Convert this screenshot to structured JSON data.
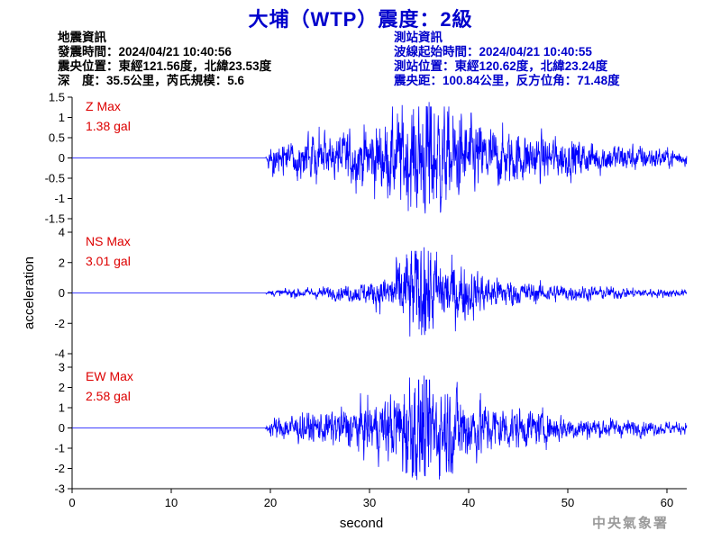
{
  "title": "大埔（WTP）震度：2級",
  "event_info": {
    "heading": "地震資訊",
    "origin_time": "發震時間：2024/04/21 10:40:56",
    "epicenter": "震央位置：東經121.56度，北緯23.53度",
    "depth_magnitude": "深　度：35.5公里，芮氏規模：5.6"
  },
  "station_info": {
    "heading": "測站資訊",
    "wave_start": "波線起始時間：2024/04/21 10:40:55",
    "location": "測站位置：東經120.62度，北緯23.24度",
    "distance": "震央距：100.84公里，反方位角：71.48度"
  },
  "agency": "中央氣象署",
  "colors": {
    "trace": "#0000ff",
    "max_label": "#dd0000",
    "title": "#0000cc",
    "info_right": "#0000cc"
  },
  "chart_data": {
    "type": "line",
    "xlabel": "second",
    "ylabel": "acceleration",
    "xlim": [
      0,
      62
    ],
    "x_ticks": [
      "0",
      "10",
      "20",
      "30",
      "40",
      "50",
      "60"
    ],
    "grid": false,
    "legend": "none",
    "record_end_s": 62,
    "signal_onset_s": 19.5,
    "panels": [
      {
        "component": "Z",
        "max_label": "Z Max",
        "max_value": "1.38 gal",
        "peak": 1.38,
        "ylim": [
          -1.5,
          1.5
        ],
        "y_ticks": [
          "1.5",
          "1",
          "0.5",
          "0",
          "-0.5",
          "-1",
          "-1.5"
        ],
        "envelope": [
          [
            19.5,
            0.05
          ],
          [
            19.8,
            0.22
          ],
          [
            21,
            0.3
          ],
          [
            23,
            0.42
          ],
          [
            26,
            0.48
          ],
          [
            29,
            0.55
          ],
          [
            31,
            0.7
          ],
          [
            33,
            0.9
          ],
          [
            35,
            1.05
          ],
          [
            36,
            1.38
          ],
          [
            38,
            0.95
          ],
          [
            40,
            0.75
          ],
          [
            43,
            0.55
          ],
          [
            47,
            0.45
          ],
          [
            52,
            0.32
          ],
          [
            57,
            0.25
          ],
          [
            62,
            0.15
          ]
        ]
      },
      {
        "component": "NS",
        "max_label": "NS Max",
        "max_value": "3.01 gal",
        "peak": 3.01,
        "ylim": [
          -4,
          4
        ],
        "y_ticks": [
          "4",
          "2",
          "0",
          "-2",
          "-4"
        ],
        "envelope": [
          [
            19.5,
            0.03
          ],
          [
            20,
            0.15
          ],
          [
            23,
            0.25
          ],
          [
            27,
            0.35
          ],
          [
            30,
            0.6
          ],
          [
            32,
            1.0
          ],
          [
            33,
            1.8
          ],
          [
            34,
            2.4
          ],
          [
            35.5,
            3.01
          ],
          [
            37,
            2.0
          ],
          [
            39,
            1.5
          ],
          [
            42,
            0.9
          ],
          [
            46,
            0.55
          ],
          [
            51,
            0.4
          ],
          [
            57,
            0.25
          ],
          [
            62,
            0.18
          ]
        ]
      },
      {
        "component": "EW",
        "max_label": "EW Max",
        "max_value": "2.58 gal",
        "peak": 2.58,
        "ylim": [
          -3,
          3
        ],
        "y_ticks": [
          "3",
          "2",
          "1",
          "0",
          "-1",
          "-2",
          "-3"
        ],
        "envelope": [
          [
            19.5,
            0.05
          ],
          [
            20,
            0.35
          ],
          [
            22,
            0.55
          ],
          [
            25,
            0.6
          ],
          [
            28,
            0.8
          ],
          [
            31,
            1.1
          ],
          [
            33,
            1.6
          ],
          [
            34,
            2.3
          ],
          [
            35.5,
            2.58
          ],
          [
            37,
            2.0
          ],
          [
            39,
            1.6
          ],
          [
            42,
            1.0
          ],
          [
            46,
            0.7
          ],
          [
            51,
            0.45
          ],
          [
            57,
            0.3
          ],
          [
            62,
            0.22
          ]
        ]
      }
    ]
  }
}
